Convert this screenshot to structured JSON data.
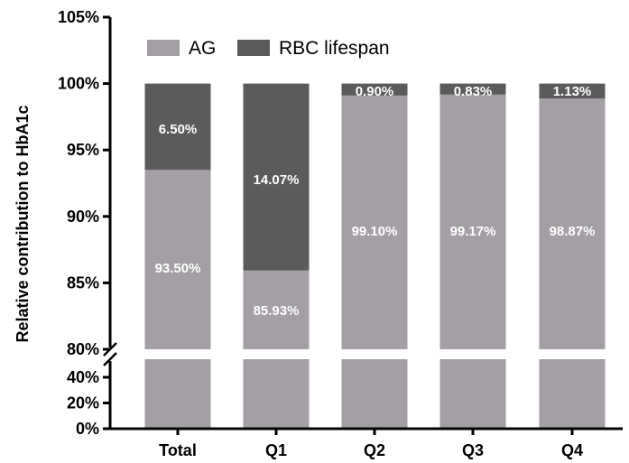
{
  "chart_data": {
    "type": "bar",
    "stacked": true,
    "broken_y_axis": true,
    "ylabel": "Relative contribution to HbA1c",
    "xlabel": "",
    "categories": [
      "Total",
      "Q1",
      "Q2",
      "Q3",
      "Q4"
    ],
    "series": [
      {
        "name": "AG",
        "color": "#a39fa4",
        "values": [
          93.5,
          85.93,
          99.1,
          99.17,
          98.87
        ],
        "labels": [
          "93.50%",
          "85.93%",
          "99.10%",
          "99.17%",
          "98.87%"
        ]
      },
      {
        "name": "RBC lifespan",
        "color": "#5b5b5b",
        "values": [
          6.5,
          14.07,
          0.9,
          0.83,
          1.13
        ],
        "labels": [
          "6.50%",
          "14.07%",
          "0.90%",
          "0.83%",
          "1.13%"
        ]
      }
    ],
    "ylim_upper": [
      80,
      105
    ],
    "ylim_lower": [
      0,
      40
    ],
    "yticks_upper": [
      "80%",
      "85%",
      "90%",
      "95%",
      "100%",
      "105%"
    ],
    "yticks_lower": [
      "0%",
      "20%",
      "40%"
    ],
    "legend_position": "top-left",
    "grid": false
  }
}
